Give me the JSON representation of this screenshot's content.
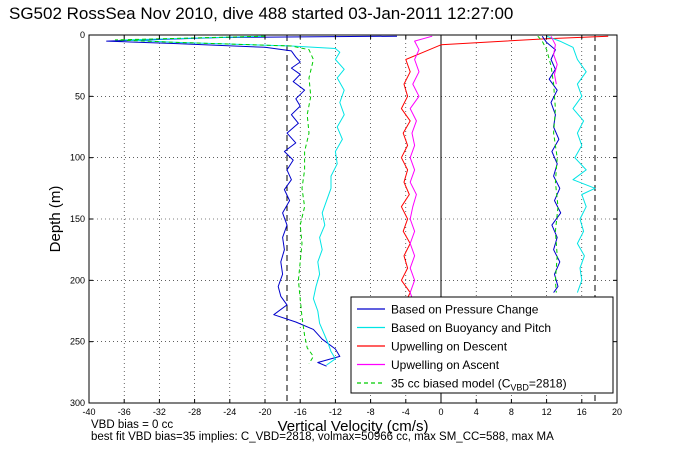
{
  "title": "SG502 RossSea Nov 2010, dive 488 started 03-Jan-2011 12:27:00",
  "footer": {
    "line1": "VBD bias = 0 cc",
    "line2": "best fit VBD bias=35 implies: C_VBD=2818, volmax=50966 cc, max SM_CC=588, max MA"
  },
  "colors": {
    "pressure": "#0000cc",
    "buoyancy": "#00e5e5",
    "descent": "#ff0000",
    "ascent": "#ff00ff",
    "model": "#00cc00"
  },
  "chart_data": {
    "type": "line",
    "title": "SG502 RossSea Nov 2010, dive 488 started 03-Jan-2011 12:27:00",
    "xlabel": "Vertical Velocity (cm/s)",
    "ylabel": "Depth (m)",
    "xlim": [
      -40,
      20
    ],
    "ylim": [
      0,
      300
    ],
    "y_reversed": true,
    "grid": true,
    "xticks": [
      -40,
      -36,
      -32,
      -28,
      -24,
      -20,
      -16,
      -12,
      -8,
      -4,
      0,
      4,
      8,
      12,
      16,
      20
    ],
    "yticks": [
      0,
      50,
      100,
      150,
      200,
      250,
      300
    ],
    "vlines": [
      -17.5,
      17.5
    ],
    "legend_position": "bottom-right",
    "legend": [
      {
        "label": "Based on Pressure Change",
        "key": "pressure",
        "dash": false
      },
      {
        "label": "Based on Buoyancy and Pitch",
        "key": "buoyancy",
        "dash": false
      },
      {
        "label": "Upwelling on Descent",
        "key": "descent",
        "dash": false
      },
      {
        "label": "Upwelling on Ascent",
        "key": "ascent",
        "dash": false
      },
      {
        "label": "35 cc biased model (C",
        "sub": "VBD",
        "suffix": "=2818)",
        "key": "model",
        "dash": true
      }
    ],
    "series": [
      {
        "name": "Based on Pressure Change",
        "key": "pressure",
        "points": [
          [
            -5,
            1
          ],
          [
            -25,
            2
          ],
          [
            -38,
            5
          ],
          [
            -30,
            7
          ],
          [
            -20,
            10
          ],
          [
            -17,
            13
          ],
          [
            -16.5,
            18
          ],
          [
            -16,
            22
          ],
          [
            -17,
            27
          ],
          [
            -16,
            32
          ],
          [
            -16.8,
            38
          ],
          [
            -15.5,
            45
          ],
          [
            -16.5,
            52
          ],
          [
            -16,
            58
          ],
          [
            -17,
            65
          ],
          [
            -16.2,
            72
          ],
          [
            -17.5,
            80
          ],
          [
            -16.5,
            88
          ],
          [
            -17.8,
            95
          ],
          [
            -16.8,
            102
          ],
          [
            -17.5,
            110
          ],
          [
            -17,
            118
          ],
          [
            -17.8,
            126
          ],
          [
            -17.2,
            135
          ],
          [
            -18,
            145
          ],
          [
            -17.5,
            155
          ],
          [
            -18,
            165
          ],
          [
            -17.8,
            175
          ],
          [
            -18.2,
            185
          ],
          [
            -18,
            195
          ],
          [
            -18.5,
            205
          ],
          [
            -18.2,
            213
          ],
          [
            -17.5,
            220
          ],
          [
            -19,
            228
          ],
          [
            -16.5,
            234
          ],
          [
            -14.5,
            240
          ],
          [
            -13.5,
            248
          ],
          [
            -12,
            256
          ],
          [
            -11.5,
            262
          ],
          [
            -14,
            267
          ],
          [
            -13,
            270
          ]
        ]
      },
      {
        "name": "Based on Buoyancy and Pitch",
        "key": "buoyancy",
        "points": [
          [
            -20,
            1
          ],
          [
            -36,
            4
          ],
          [
            -30,
            6
          ],
          [
            -17,
            9
          ],
          [
            -12,
            11
          ],
          [
            -11.5,
            14
          ],
          [
            -12,
            20
          ],
          [
            -11,
            28
          ],
          [
            -11.8,
            35
          ],
          [
            -11,
            45
          ],
          [
            -11.5,
            55
          ],
          [
            -11,
            65
          ],
          [
            -11.8,
            75
          ],
          [
            -11.2,
            85
          ],
          [
            -12,
            95
          ],
          [
            -11.8,
            105
          ],
          [
            -12.5,
            115
          ],
          [
            -12.5,
            125
          ],
          [
            -13,
            135
          ],
          [
            -13.5,
            145
          ],
          [
            -13.2,
            155
          ],
          [
            -13.8,
            165
          ],
          [
            -13.5,
            175
          ],
          [
            -14,
            185
          ],
          [
            -13.8,
            195
          ],
          [
            -14.2,
            205
          ],
          [
            -14.5,
            215
          ],
          [
            -14,
            225
          ],
          [
            -13.8,
            235
          ],
          [
            -13.2,
            245
          ],
          [
            -12.8,
            252
          ],
          [
            -12.5,
            258
          ],
          [
            -12,
            264
          ],
          [
            -13,
            269
          ]
        ]
      },
      {
        "name": "Upwelling on Descent",
        "key": "descent",
        "points": [
          [
            19,
            1
          ],
          [
            12,
            3
          ],
          [
            0,
            8
          ],
          [
            -2,
            14
          ],
          [
            -4,
            20
          ],
          [
            -3.5,
            30
          ],
          [
            -4.2,
            40
          ],
          [
            -3.8,
            50
          ],
          [
            -4.5,
            60
          ],
          [
            -3.5,
            70
          ],
          [
            -4.3,
            80
          ],
          [
            -3.8,
            90
          ],
          [
            -4.5,
            100
          ],
          [
            -3.8,
            110
          ],
          [
            -4.2,
            120
          ],
          [
            -3.6,
            130
          ],
          [
            -4.5,
            140
          ],
          [
            -3.8,
            150
          ],
          [
            -4.3,
            160
          ],
          [
            -3.5,
            170
          ],
          [
            -4.2,
            180
          ],
          [
            -3.8,
            190
          ],
          [
            -4.5,
            200
          ],
          [
            -3.5,
            210
          ],
          [
            -4.2,
            220
          ],
          [
            -3.5,
            230
          ],
          [
            -4.0,
            240
          ],
          [
            -3.5,
            250
          ]
        ]
      },
      {
        "name": "Upwelling on Ascent",
        "key": "ascent",
        "points": [
          [
            -1,
            1
          ],
          [
            -3,
            5
          ],
          [
            -2.5,
            12
          ],
          [
            -3,
            20
          ],
          [
            -2.5,
            30
          ],
          [
            -3.2,
            40
          ],
          [
            -2.5,
            50
          ],
          [
            -3.5,
            60
          ],
          [
            -2.8,
            70
          ],
          [
            -3.3,
            80
          ],
          [
            -3,
            90
          ],
          [
            -3.5,
            100
          ],
          [
            -3,
            110
          ],
          [
            -3.5,
            120
          ],
          [
            -2.8,
            130
          ],
          [
            -3.2,
            140
          ],
          [
            -3.5,
            150
          ],
          [
            -3,
            160
          ],
          [
            -3.5,
            170
          ],
          [
            -3,
            180
          ],
          [
            -3.5,
            190
          ],
          [
            -3,
            200
          ],
          [
            -3.5,
            210
          ],
          [
            -3,
            220
          ],
          [
            -3.5,
            230
          ],
          [
            -3,
            240
          ],
          [
            -3.2,
            250
          ],
          [
            -3.5,
            258
          ],
          [
            -3,
            265
          ]
        ]
      },
      {
        "name": "35 cc biased model (CVBD=2818)",
        "key": "model",
        "points": [
          [
            -20,
            1
          ],
          [
            -37,
            4
          ],
          [
            -30,
            6
          ],
          [
            -17,
            9
          ],
          [
            -15,
            12
          ],
          [
            -14.5,
            20
          ],
          [
            -15,
            35
          ],
          [
            -14.8,
            50
          ],
          [
            -15.2,
            65
          ],
          [
            -15,
            80
          ],
          [
            -15.5,
            95
          ],
          [
            -15.5,
            110
          ],
          [
            -15.8,
            125
          ],
          [
            -15.5,
            140
          ],
          [
            -16,
            155
          ],
          [
            -15.8,
            170
          ],
          [
            -16,
            185
          ],
          [
            -16.2,
            200
          ],
          [
            -16,
            215
          ],
          [
            -15.8,
            230
          ],
          [
            -15.5,
            245
          ],
          [
            -15.2,
            255
          ],
          [
            -14.5,
            262
          ],
          [
            -15,
            268
          ]
        ]
      },
      {
        "name": "Based on Pressure Change (right)",
        "key": "pressure",
        "points": [
          [
            11.5,
            1
          ],
          [
            12,
            6
          ],
          [
            13,
            12
          ],
          [
            12.5,
            20
          ],
          [
            13,
            28
          ],
          [
            12.3,
            36
          ],
          [
            13.2,
            45
          ],
          [
            12.5,
            55
          ],
          [
            13,
            65
          ],
          [
            12.8,
            75
          ],
          [
            13.4,
            85
          ],
          [
            12.6,
            95
          ],
          [
            13.2,
            105
          ],
          [
            12.8,
            115
          ],
          [
            13.5,
            125
          ],
          [
            12.9,
            135
          ],
          [
            13.6,
            145
          ],
          [
            12.6,
            155
          ],
          [
            13.2,
            165
          ],
          [
            12.8,
            175
          ],
          [
            13.5,
            185
          ],
          [
            12.9,
            195
          ],
          [
            13.3,
            205
          ],
          [
            12.8,
            210
          ]
        ]
      },
      {
        "name": "Based on Buoyancy and Pitch (right)",
        "key": "buoyancy",
        "points": [
          [
            12,
            1
          ],
          [
            13.5,
            5
          ],
          [
            15,
            10
          ],
          [
            15.5,
            20
          ],
          [
            16.5,
            30
          ],
          [
            15.5,
            40
          ],
          [
            16,
            50
          ],
          [
            15,
            60
          ],
          [
            16.2,
            70
          ],
          [
            15.5,
            80
          ],
          [
            16,
            90
          ],
          [
            15.2,
            100
          ],
          [
            16.5,
            110
          ],
          [
            15,
            118
          ],
          [
            17.5,
            125
          ],
          [
            16,
            130
          ],
          [
            16.5,
            140
          ],
          [
            15.8,
            150
          ],
          [
            16.2,
            160
          ],
          [
            15.5,
            170
          ],
          [
            16.3,
            180
          ],
          [
            15.8,
            190
          ],
          [
            16,
            200
          ],
          [
            15.5,
            210
          ]
        ]
      },
      {
        "name": "Upwelling on Ascent (right)",
        "key": "ascent",
        "points": [
          [
            12.5,
            1
          ],
          [
            13,
            8
          ],
          [
            12.8,
            16
          ],
          [
            13.2,
            24
          ],
          [
            12.9,
            32
          ],
          [
            13.1,
            40
          ]
        ]
      },
      {
        "name": "35 cc biased model (right)",
        "key": "model",
        "points": [
          [
            11,
            1
          ],
          [
            11.5,
            5
          ],
          [
            12,
            12
          ],
          [
            12.5,
            25
          ],
          [
            12.8,
            40
          ],
          [
            13,
            60
          ],
          [
            12.8,
            80
          ],
          [
            13.2,
            100
          ],
          [
            13,
            120
          ],
          [
            13.3,
            140
          ],
          [
            13,
            160
          ],
          [
            13.2,
            180
          ],
          [
            13,
            200
          ],
          [
            13.1,
            210
          ]
        ]
      }
    ]
  }
}
